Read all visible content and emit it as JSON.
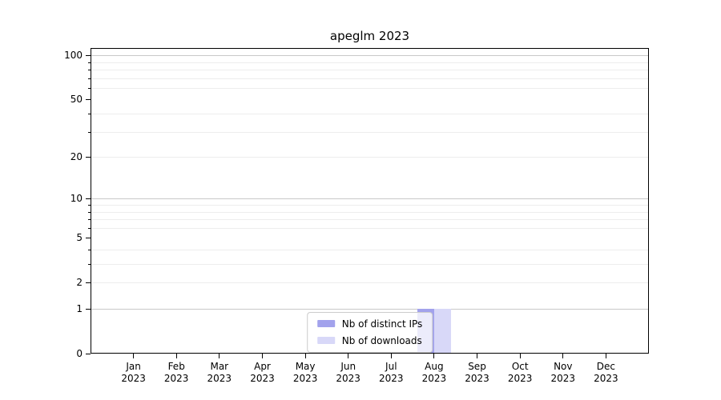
{
  "chart_data": {
    "type": "bar",
    "title": "apeglm 2023",
    "x_tick_months": [
      "Jan",
      "Feb",
      "Mar",
      "Apr",
      "May",
      "Jun",
      "Jul",
      "Aug",
      "Sep",
      "Oct",
      "Nov",
      "Dec"
    ],
    "x_tick_year": "2023",
    "series": [
      {
        "name": "Nb of distinct IPs",
        "color": "#a2a2ec",
        "values": [
          0,
          0,
          0,
          0,
          0,
          0,
          0,
          1,
          0,
          0,
          0,
          0
        ]
      },
      {
        "name": "Nb of downloads",
        "color": "#d8d8f8",
        "values": [
          0,
          0,
          0,
          0,
          0,
          0,
          0,
          1,
          0,
          0,
          0,
          0
        ]
      }
    ],
    "y_axis": {
      "scale": "log1p",
      "max": 112,
      "major_tick_labels": [
        "0",
        "1",
        "2",
        "5",
        "10",
        "20",
        "50",
        "100"
      ],
      "major_ticks": [
        0,
        1,
        2,
        5,
        10,
        20,
        50,
        100
      ],
      "minor_ticks": [
        3,
        4,
        6,
        7,
        8,
        9,
        30,
        40,
        60,
        70,
        80,
        90
      ],
      "major_grid": [
        1,
        10,
        100
      ],
      "minor_grid": [
        2,
        3,
        4,
        6,
        7,
        8,
        9,
        20,
        30,
        40,
        60,
        70,
        80,
        90
      ]
    },
    "legend": {
      "position": "lower center"
    },
    "colors": {
      "major_grid": "#c9c9c9",
      "minor_grid": "#ededed",
      "spine": "#000000",
      "text": "#000000",
      "background": "#ffffff"
    }
  }
}
